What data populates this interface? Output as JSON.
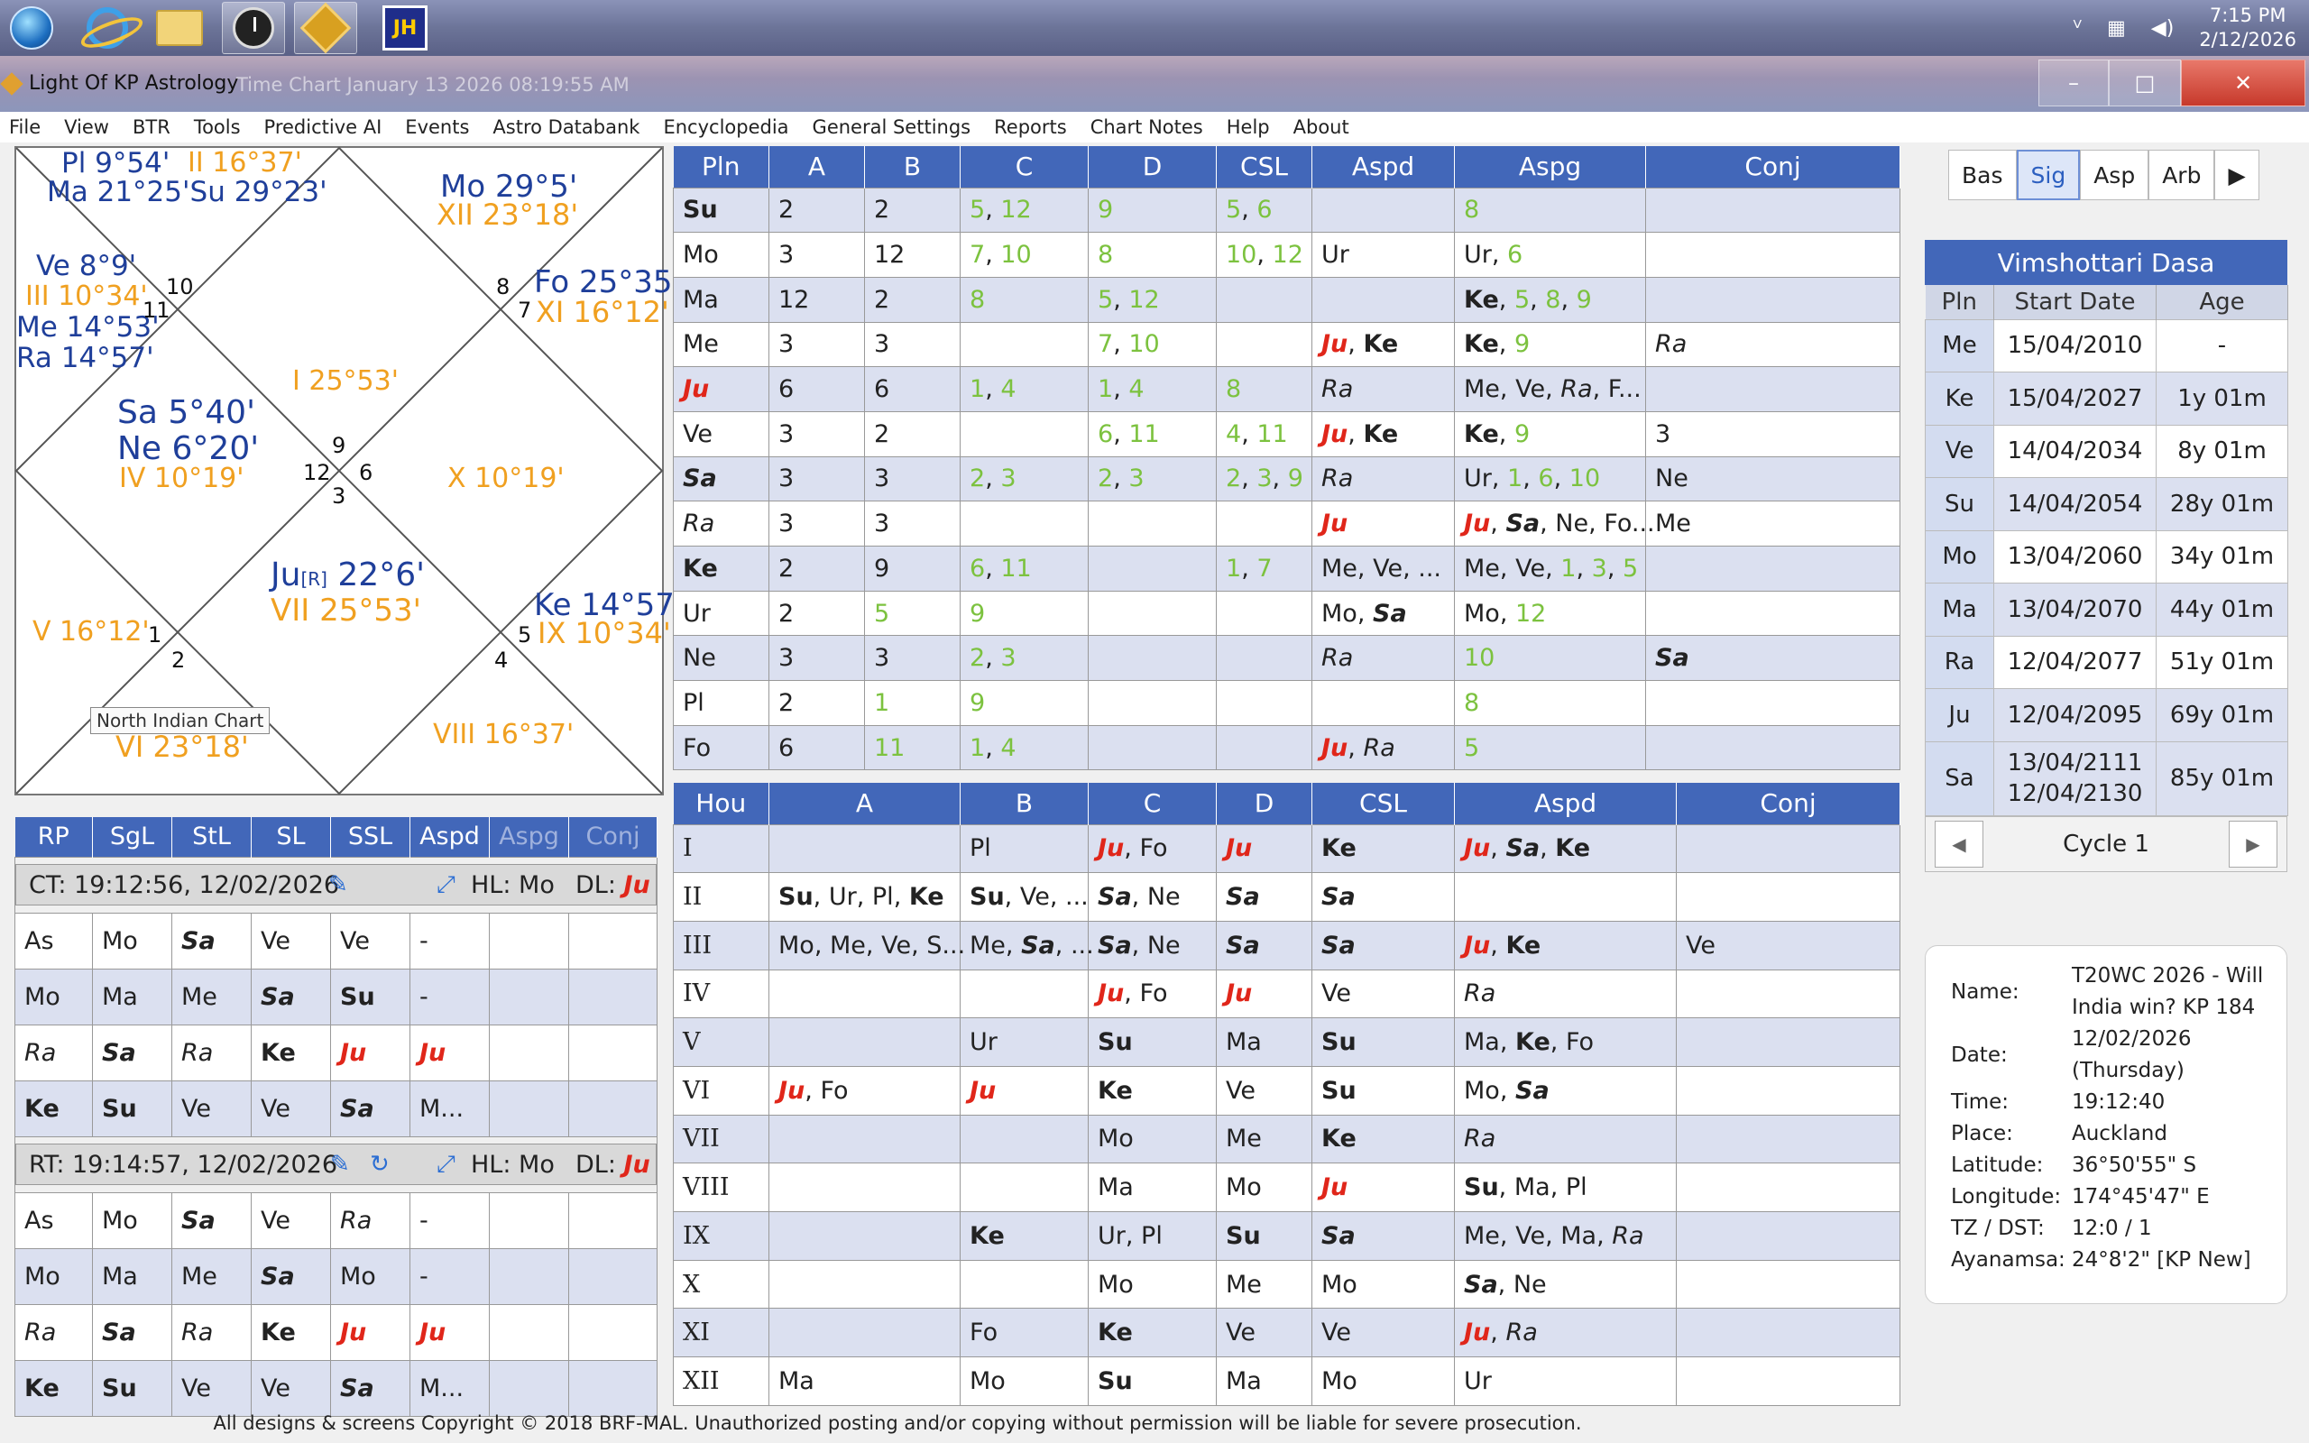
{
  "taskbar": {
    "time": "7:15 PM",
    "date": "2/12/2026",
    "chevron": "ⱽ"
  },
  "window": {
    "app_title": "Light Of KP Astrology",
    "subtitle": "Time Chart January 13 2026 08:19:55 AM",
    "min": "–",
    "max": "□",
    "close": "✕"
  },
  "menu": [
    "File",
    "View",
    "BTR",
    "Tools",
    "Predictive AI",
    "Events",
    "Astro Databank",
    "Encyclopedia",
    "General Settings",
    "Reports",
    "Chart Notes",
    "Help",
    "About"
  ],
  "chart": {
    "tooltip": "North Indian Chart",
    "h1_planets": [
      "Sa 5°40'",
      "Ne 6°20'"
    ],
    "h1_cusp": "I 25°53'",
    "h2_planets": [
      "Pl 9°54'",
      "Ma 21°25'Su 29°23'"
    ],
    "h2_cusp": "II 16°37'",
    "h3_planets": [
      "Ve 8°9'",
      "Me 14°53'",
      "Ra 14°57'"
    ],
    "h3_cusp": "III 10°34'",
    "h4_cusp": "IV 10°19'",
    "h5_cusp": "V 16°12'",
    "h6_cusp": "VI 23°18'",
    "h7_planet": "Ju",
    "h7_planet_sub": "[R]",
    "h7_planet_deg": " 22°6'",
    "h7_cusp": "VII 25°53'",
    "h8_cusp": "VIII 16°37'",
    "h9_planet": "Ke 14°57'",
    "h9_cusp": "IX 10°34'",
    "h10_cusp": "X 10°19'",
    "h11_planet": "Fo 25°35'",
    "h11_cusp": "XI 16°12'",
    "h12_planet": "Mo 29°5'",
    "h12_cusp": "XII 23°18'",
    "house_numbers": [
      "9",
      "12",
      "6",
      "3",
      "10",
      "11",
      "8",
      "7",
      "1",
      "2",
      "5",
      "4"
    ]
  },
  "planet_table": {
    "headers": [
      "Pln",
      "A",
      "B",
      "C",
      "D",
      "CSL",
      "Aspd",
      "Aspg",
      "Conj"
    ],
    "rows": [
      [
        "Su",
        "2",
        "2",
        "5, 12",
        "9",
        "5, 6",
        "",
        "8",
        ""
      ],
      [
        "Mo",
        "3",
        "12",
        "7, 10",
        "8",
        "10, 12",
        "Ur",
        "Ur, 6",
        ""
      ],
      [
        "Ma",
        "12",
        "2",
        "8",
        "5, 12",
        "",
        "",
        "Ke, 5, 8, 9",
        ""
      ],
      [
        "Me",
        "3",
        "3",
        "",
        "7, 10",
        "",
        "Ju, Ke",
        "Ke, 9",
        "Ra"
      ],
      [
        "Ju",
        "6",
        "6",
        "1, 4",
        "1, 4",
        "8",
        "Ra",
        "Me, Ve, Ra, F...",
        ""
      ],
      [
        "Ve",
        "3",
        "2",
        "",
        "6, 11",
        "4, 11",
        "Ju, Ke",
        "Ke, 9",
        "3"
      ],
      [
        "Sa",
        "3",
        "3",
        "2, 3",
        "2, 3",
        "2, 3, 9",
        "Ra",
        "Ur, 1, 6, 10",
        "Ne"
      ],
      [
        "Ra",
        "3",
        "3",
        "",
        "",
        "",
        "Ju",
        "Ju, Sa, Ne, Fo...",
        "Me"
      ],
      [
        "Ke",
        "2",
        "9",
        "6, 11",
        "",
        "1, 7",
        "Me, Ve, ...",
        "Me, Ve, 1, 3, 5",
        ""
      ],
      [
        "Ur",
        "2",
        "5",
        "9",
        "",
        "",
        "Mo, Sa",
        "Mo, 12",
        ""
      ],
      [
        "Ne",
        "3",
        "3",
        "2, 3",
        "",
        "",
        "Ra",
        "10",
        "Sa"
      ],
      [
        "Pl",
        "2",
        "1",
        "9",
        "",
        "",
        "",
        "8",
        ""
      ],
      [
        "Fo",
        "6",
        "11",
        "1, 4",
        "",
        "",
        "Ju, Ra",
        "5",
        ""
      ]
    ]
  },
  "house_table": {
    "headers": [
      "Hou",
      "A",
      "B",
      "C",
      "D",
      "CSL",
      "Aspd",
      "Conj"
    ],
    "rows": [
      [
        "I",
        "",
        "Pl",
        "Ju, Fo",
        "Ju",
        "Ke",
        "Ju, Sa, Ke",
        ""
      ],
      [
        "II",
        "Su, Ur, Pl, Ke",
        "Su, Ve, ...",
        "Sa, Ne",
        "Sa",
        "Sa",
        "",
        ""
      ],
      [
        "III",
        "Mo, Me, Ve, S...",
        "Me, Sa, ...",
        "Sa, Ne",
        "Sa",
        "Sa",
        "Ju, Ke",
        "Ve"
      ],
      [
        "IV",
        "",
        "",
        "Ju, Fo",
        "Ju",
        "Ve",
        "Ra",
        ""
      ],
      [
        "V",
        "",
        "Ur",
        "Su",
        "Ma",
        "Su",
        "Ma, Ke, Fo",
        ""
      ],
      [
        "VI",
        "Ju, Fo",
        "Ju",
        "Ke",
        "Ve",
        "Su",
        "Mo, Sa",
        ""
      ],
      [
        "VII",
        "",
        "",
        "Mo",
        "Me",
        "Ke",
        "Ra",
        ""
      ],
      [
        "VIII",
        "",
        "",
        "Ma",
        "Mo",
        "Ju",
        "Su, Ma, Pl",
        ""
      ],
      [
        "IX",
        "",
        "Ke",
        "Ur, Pl",
        "Su",
        "Sa",
        "Me, Ve, Ma, Ra",
        ""
      ],
      [
        "X",
        "",
        "",
        "Mo",
        "Me",
        "Mo",
        "Sa, Ne",
        ""
      ],
      [
        "XI",
        "",
        "Fo",
        "Ke",
        "Ve",
        "Ve",
        "Ju, Ra",
        ""
      ],
      [
        "XII",
        "Ma",
        "Mo",
        "Su",
        "Ma",
        "Mo",
        "Ur",
        ""
      ]
    ]
  },
  "rp_panel": {
    "headers": [
      "RP",
      "SgL",
      "StL",
      "SL",
      "SSL",
      "Aspd",
      "Aspg",
      "Conj"
    ],
    "ct_label": "CT:  19:12:56, 12/02/2026",
    "ct_hl": "HL: Mo",
    "ct_dl": "DL: ",
    "ct_dl_val": "Ju",
    "ct_rows": [
      [
        "As",
        "Mo",
        "Sa",
        "Ve",
        "Ve",
        "-",
        "",
        ""
      ],
      [
        "Mo",
        "Ma",
        "Me",
        "Sa",
        "Su",
        "-",
        "",
        ""
      ],
      [
        "Ra",
        "Sa",
        "Ra",
        "Ke",
        "Ju",
        "Ju",
        "",
        ""
      ],
      [
        "Ke",
        "Su",
        "Ve",
        "Ve",
        "Sa",
        "M...",
        "",
        ""
      ]
    ],
    "rt_label": "RT:  19:14:57, 12/02/2026",
    "rt_hl": "HL: Mo",
    "rt_dl": "DL: ",
    "rt_dl_val": "Ju",
    "rt_rows": [
      [
        "As",
        "Mo",
        "Sa",
        "Ve",
        "Ra",
        "-",
        "",
        ""
      ],
      [
        "Mo",
        "Ma",
        "Me",
        "Sa",
        "Mo",
        "-",
        "",
        ""
      ],
      [
        "Ra",
        "Sa",
        "Ra",
        "Ke",
        "Ju",
        "Ju",
        "",
        ""
      ],
      [
        "Ke",
        "Su",
        "Ve",
        "Ve",
        "Sa",
        "M...",
        "",
        ""
      ]
    ],
    "edit_icon": "✎",
    "expand_icon": "⤢",
    "refresh_icon": "↻"
  },
  "tabs": [
    "Bas",
    "Sig",
    "Asp",
    "Arb",
    "▶"
  ],
  "dasa": {
    "title": "Vimshottari Dasa",
    "headers": [
      "Pln",
      "Start Date",
      "Age"
    ],
    "rows": [
      [
        "Me",
        "15/04/2010",
        "-"
      ],
      [
        "Ke",
        "15/04/2027",
        "1y 01m"
      ],
      [
        "Ve",
        "14/04/2034",
        "8y 01m"
      ],
      [
        "Su",
        "14/04/2054",
        "28y 01m"
      ],
      [
        "Mo",
        "13/04/2060",
        "34y 01m"
      ],
      [
        "Ma",
        "13/04/2070",
        "44y 01m"
      ],
      [
        "Ra",
        "12/04/2077",
        "51y 01m"
      ],
      [
        "Ju",
        "12/04/2095",
        "69y 01m"
      ]
    ],
    "last_row": {
      "pln": "Sa",
      "start1": "13/04/2111",
      "start2": "12/04/2130",
      "age": "85y 01m"
    },
    "cycle": "Cycle 1",
    "prev": "◀",
    "next": "▶"
  },
  "info": {
    "name_label": "Name:",
    "name_value": "T20WC 2026 - Will India win? KP 184",
    "date_label": "Date:",
    "date_value": "12/02/2026 (Thursday)",
    "time_label": "Time:",
    "time_value": "19:12:40",
    "place_label": "Place:",
    "place_value": "Auckland",
    "lat_label": "Latitude:",
    "lat_value": "36°50'55\" S",
    "lon_label": "Longitude:",
    "lon_value": "174°45'47\" E",
    "tz_label": "TZ / DST:",
    "tz_value": "12:0 / 1",
    "ayan_label": "Ayanamsa:",
    "ayan_value": "24°8'2\" [KP New]"
  },
  "copyright": "All designs & screens Copyright © 2018 BRF-MAL. Unauthorized posting and/or copying without permission will be liable for severe prosecution."
}
